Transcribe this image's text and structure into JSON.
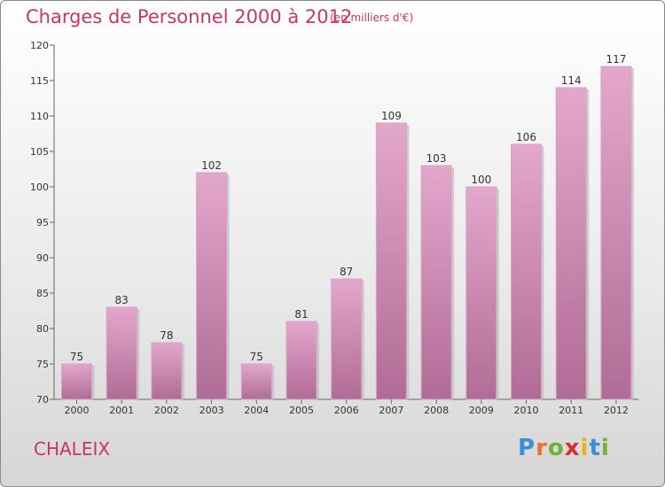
{
  "header": {
    "title": "Charges de Personnel 2000 à 2012",
    "subtitle": "(en milliers d'€)"
  },
  "footer": {
    "city": "CHALEIX",
    "logo_letters": [
      "P",
      "r",
      "o",
      "x",
      "i",
      "t",
      "i"
    ],
    "logo_colors": [
      "#3b8fd6",
      "#e8742a",
      "#6fb33a",
      "#d83030",
      "#e8b21a",
      "#3b8fd6",
      "#6fb33a"
    ]
  },
  "colors": {
    "bar_top": "#e4a7cc",
    "bar_bottom": "#b06c96",
    "bar_shadow": "#bdbdbd",
    "text": "#c8346a"
  },
  "chart_data": {
    "type": "bar",
    "categories": [
      "2000",
      "2001",
      "2002",
      "2003",
      "2004",
      "2005",
      "2006",
      "2007",
      "2008",
      "2009",
      "2010",
      "2011",
      "2012"
    ],
    "values": [
      75,
      83,
      78,
      102,
      75,
      81,
      87,
      109,
      103,
      100,
      106,
      114,
      117
    ],
    "ylim": [
      70,
      120
    ],
    "yticks": [
      70,
      75,
      80,
      85,
      90,
      95,
      100,
      105,
      110,
      115,
      120
    ],
    "grid": false
  }
}
